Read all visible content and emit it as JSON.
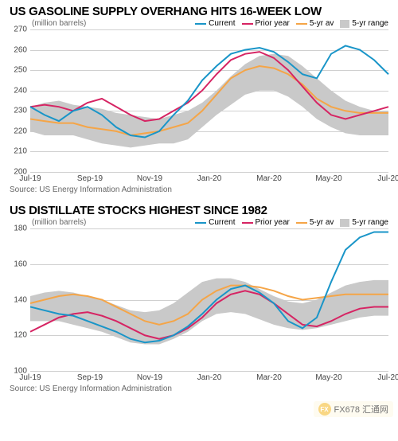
{
  "charts": [
    {
      "title": "US GASOLINE SUPPLY OVERHANG HITS 16-WEEK LOW",
      "unit": "(million barrels)",
      "source": "Source: US Energy Information Administration",
      "type": "line",
      "ylim": [
        200,
        270
      ],
      "ytick_step": 10,
      "yticks": [
        200,
        210,
        220,
        230,
        240,
        250,
        260,
        270
      ],
      "x_categories": [
        "Jul-19",
        "Sep-19",
        "Nov-19",
        "Jan-20",
        "Mar-20",
        "May-20",
        "Jul-20"
      ],
      "background_color": "#ffffff",
      "grid_color": "#d0d0d0",
      "legend": [
        {
          "label": "Current",
          "type": "line",
          "color": "#1995c8"
        },
        {
          "label": "Prior year",
          "type": "line",
          "color": "#d62463"
        },
        {
          "label": "5-yr av",
          "type": "line",
          "color": "#f5a547"
        },
        {
          "label": "5-yr range",
          "type": "box",
          "color": "#c9c9c9"
        }
      ],
      "series": {
        "range_upper": [
          232,
          234,
          235,
          233,
          232,
          231,
          229,
          228,
          227,
          226,
          228,
          230,
          234,
          240,
          247,
          253,
          257,
          258,
          257,
          252,
          246,
          240,
          235,
          232,
          230,
          230
        ],
        "range_lower": [
          220,
          218,
          218,
          218,
          216,
          214,
          213,
          212,
          213,
          214,
          214,
          216,
          222,
          228,
          233,
          238,
          240,
          240,
          237,
          232,
          226,
          222,
          219,
          218,
          218,
          218
        ],
        "five_yr_avg": [
          226,
          225,
          224,
          224,
          222,
          221,
          220,
          218,
          219,
          220,
          222,
          224,
          230,
          238,
          246,
          250,
          252,
          251,
          248,
          243,
          236,
          232,
          230,
          229,
          229,
          229
        ],
        "prior_year": [
          232,
          233,
          232,
          230,
          234,
          236,
          232,
          228,
          225,
          226,
          230,
          234,
          240,
          248,
          255,
          258,
          259,
          256,
          250,
          242,
          234,
          228,
          226,
          228,
          230,
          232
        ],
        "current": [
          232,
          228,
          225,
          230,
          232,
          228,
          222,
          218,
          217,
          220,
          228,
          235,
          245,
          252,
          258,
          260,
          261,
          259,
          254,
          248,
          246,
          258,
          262,
          260,
          255,
          248
        ]
      },
      "line_width": 2,
      "range_color": "#c9c9c9",
      "title_fontsize": 15,
      "label_fontsize": 10
    },
    {
      "title": "US DISTILLATE STOCKS HIGHEST SINCE 1982",
      "unit": "(million barrels)",
      "source": "Source: US Energy Information Administration",
      "type": "line",
      "ylim": [
        100,
        180
      ],
      "ytick_step": 20,
      "yticks": [
        100,
        120,
        140,
        160,
        180
      ],
      "x_categories": [
        "Jul-19",
        "Sep-19",
        "Nov-19",
        "Jan-20",
        "Mar-20",
        "May-20",
        "Jul-20"
      ],
      "background_color": "#ffffff",
      "grid_color": "#d0d0d0",
      "legend": [
        {
          "label": "Current",
          "type": "line",
          "color": "#1995c8"
        },
        {
          "label": "Prior year",
          "type": "line",
          "color": "#d62463"
        },
        {
          "label": "5-yr av",
          "type": "line",
          "color": "#f5a547"
        },
        {
          "label": "5-yr range",
          "type": "box",
          "color": "#c9c9c9"
        }
      ],
      "series": {
        "range_upper": [
          142,
          144,
          145,
          144,
          142,
          140,
          137,
          134,
          133,
          134,
          138,
          144,
          150,
          152,
          152,
          150,
          146,
          142,
          139,
          138,
          140,
          144,
          148,
          150,
          151,
          151
        ],
        "range_lower": [
          128,
          128,
          128,
          126,
          124,
          122,
          119,
          116,
          115,
          115,
          118,
          122,
          128,
          132,
          133,
          132,
          129,
          126,
          124,
          123,
          124,
          126,
          128,
          130,
          131,
          131
        ],
        "five_yr_avg": [
          138,
          140,
          142,
          143,
          142,
          140,
          136,
          132,
          128,
          126,
          128,
          132,
          140,
          145,
          148,
          148,
          147,
          145,
          142,
          140,
          141,
          142,
          143,
          143,
          143,
          143
        ],
        "prior_year": [
          122,
          126,
          130,
          132,
          133,
          131,
          128,
          124,
          120,
          118,
          120,
          124,
          130,
          138,
          143,
          145,
          143,
          138,
          132,
          126,
          125,
          128,
          132,
          135,
          136,
          136
        ],
        "current": [
          136,
          134,
          132,
          131,
          128,
          125,
          122,
          118,
          116,
          117,
          120,
          125,
          132,
          140,
          146,
          148,
          144,
          138,
          128,
          124,
          130,
          150,
          168,
          175,
          178,
          178
        ]
      },
      "line_width": 2,
      "range_color": "#c9c9c9",
      "title_fontsize": 15,
      "label_fontsize": 10
    }
  ],
  "watermark": {
    "text": "FX678 汇通网",
    "badge": "FX",
    "badge_bg": "#f5b820",
    "badge_fg": "#ffffff"
  }
}
